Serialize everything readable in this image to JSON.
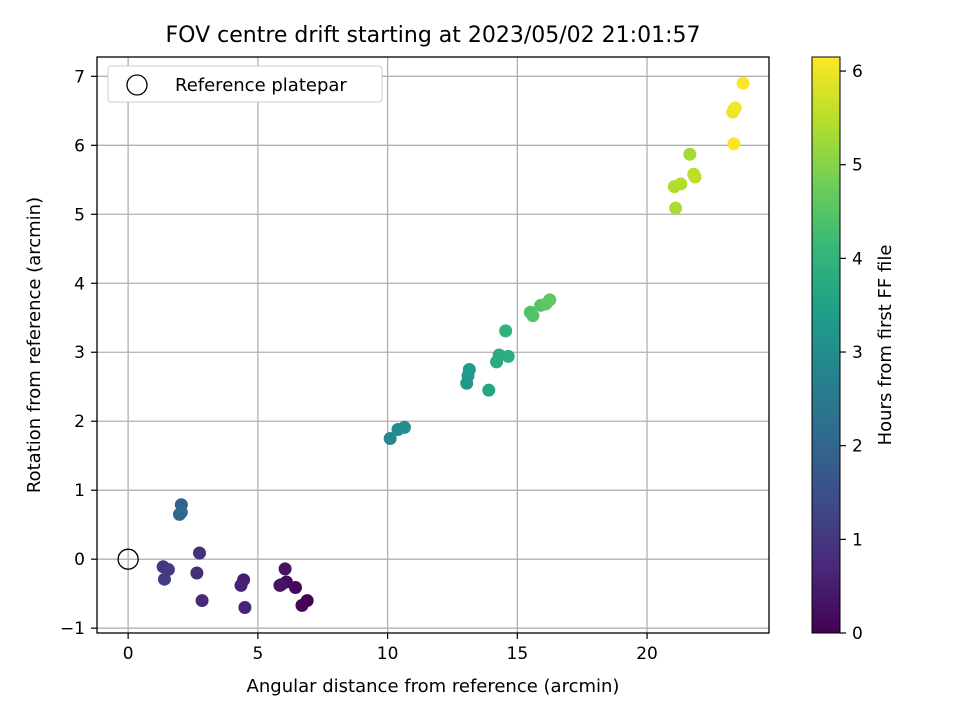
{
  "chart_data": {
    "type": "scatter",
    "title": "FOV centre drift starting at 2023/05/02 21:01:57",
    "xlabel": "Angular distance from reference (arcmin)",
    "ylabel": "Rotation from reference (arcmin)",
    "xlim": [
      -1.2,
      24.7
    ],
    "ylim": [
      -1.07,
      7.28
    ],
    "x_ticks": [
      0,
      5,
      10,
      15,
      20
    ],
    "y_ticks": [
      -1,
      0,
      1,
      2,
      3,
      4,
      5,
      6,
      7
    ],
    "grid": true,
    "legend": {
      "placement": "top-left",
      "entries": [
        "Reference platepar"
      ]
    },
    "reference_point": {
      "x": 0,
      "y": 0,
      "label": "Reference platepar"
    },
    "colorbar": {
      "label": "Hours from first FF file",
      "range": [
        0,
        6.15
      ],
      "ticks": [
        0,
        1,
        2,
        3,
        4,
        5,
        6
      ],
      "colormap": [
        "#440154",
        "#482878",
        "#3e4989",
        "#31688e",
        "#26828e",
        "#1f9e89",
        "#35b779",
        "#6ece58",
        "#b5de2b",
        "#fde725"
      ]
    },
    "points": [
      {
        "x": 6.9,
        "y": -0.6,
        "h": 0.02
      },
      {
        "x": 6.7,
        "y": -0.67,
        "h": 0.08
      },
      {
        "x": 6.45,
        "y": -0.41,
        "h": 0.14
      },
      {
        "x": 6.1,
        "y": -0.33,
        "h": 0.2
      },
      {
        "x": 5.9,
        "y": -0.37,
        "h": 0.26
      },
      {
        "x": 6.05,
        "y": -0.14,
        "h": 0.3
      },
      {
        "x": 5.85,
        "y": -0.38,
        "h": 0.34
      },
      {
        "x": 4.45,
        "y": -0.3,
        "h": 0.5
      },
      {
        "x": 4.35,
        "y": -0.38,
        "h": 0.56
      },
      {
        "x": 4.5,
        "y": -0.7,
        "h": 0.62
      },
      {
        "x": 2.85,
        "y": -0.6,
        "h": 0.72
      },
      {
        "x": 2.65,
        "y": -0.2,
        "h": 0.8
      },
      {
        "x": 2.75,
        "y": 0.09,
        "h": 0.85
      },
      {
        "x": 1.35,
        "y": -0.11,
        "h": 1.0
      },
      {
        "x": 1.55,
        "y": -0.15,
        "h": 1.05
      },
      {
        "x": 1.4,
        "y": -0.29,
        "h": 1.12
      },
      {
        "x": 2.05,
        "y": 0.79,
        "h": 1.9
      },
      {
        "x": 1.98,
        "y": 0.65,
        "h": 1.96
      },
      {
        "x": 2.05,
        "y": 0.68,
        "h": 2.02
      },
      {
        "x": 10.1,
        "y": 1.75,
        "h": 2.9
      },
      {
        "x": 10.4,
        "y": 1.88,
        "h": 2.95
      },
      {
        "x": 10.65,
        "y": 1.91,
        "h": 3.0
      },
      {
        "x": 13.05,
        "y": 2.55,
        "h": 3.25
      },
      {
        "x": 13.1,
        "y": 2.66,
        "h": 3.3
      },
      {
        "x": 13.15,
        "y": 2.75,
        "h": 3.35
      },
      {
        "x": 13.9,
        "y": 2.45,
        "h": 3.6
      },
      {
        "x": 14.2,
        "y": 2.86,
        "h": 3.75
      },
      {
        "x": 14.3,
        "y": 2.96,
        "h": 3.8
      },
      {
        "x": 14.65,
        "y": 2.94,
        "h": 3.85
      },
      {
        "x": 14.55,
        "y": 3.31,
        "h": 3.95
      },
      {
        "x": 15.5,
        "y": 3.58,
        "h": 4.4
      },
      {
        "x": 15.6,
        "y": 3.53,
        "h": 4.45
      },
      {
        "x": 15.9,
        "y": 3.68,
        "h": 4.5
      },
      {
        "x": 16.1,
        "y": 3.7,
        "h": 4.55
      },
      {
        "x": 16.25,
        "y": 3.76,
        "h": 4.6
      },
      {
        "x": 21.1,
        "y": 5.09,
        "h": 5.35
      },
      {
        "x": 21.05,
        "y": 5.4,
        "h": 5.4
      },
      {
        "x": 21.3,
        "y": 5.44,
        "h": 5.45
      },
      {
        "x": 21.65,
        "y": 5.87,
        "h": 5.3
      },
      {
        "x": 21.8,
        "y": 5.58,
        "h": 5.5
      },
      {
        "x": 21.85,
        "y": 5.54,
        "h": 5.55
      },
      {
        "x": 23.3,
        "y": 6.48,
        "h": 5.95
      },
      {
        "x": 23.35,
        "y": 6.52,
        "h": 6.0
      },
      {
        "x": 23.4,
        "y": 6.54,
        "h": 6.05
      },
      {
        "x": 23.35,
        "y": 6.02,
        "h": 6.1
      },
      {
        "x": 23.7,
        "y": 6.9,
        "h": 6.12
      }
    ]
  }
}
